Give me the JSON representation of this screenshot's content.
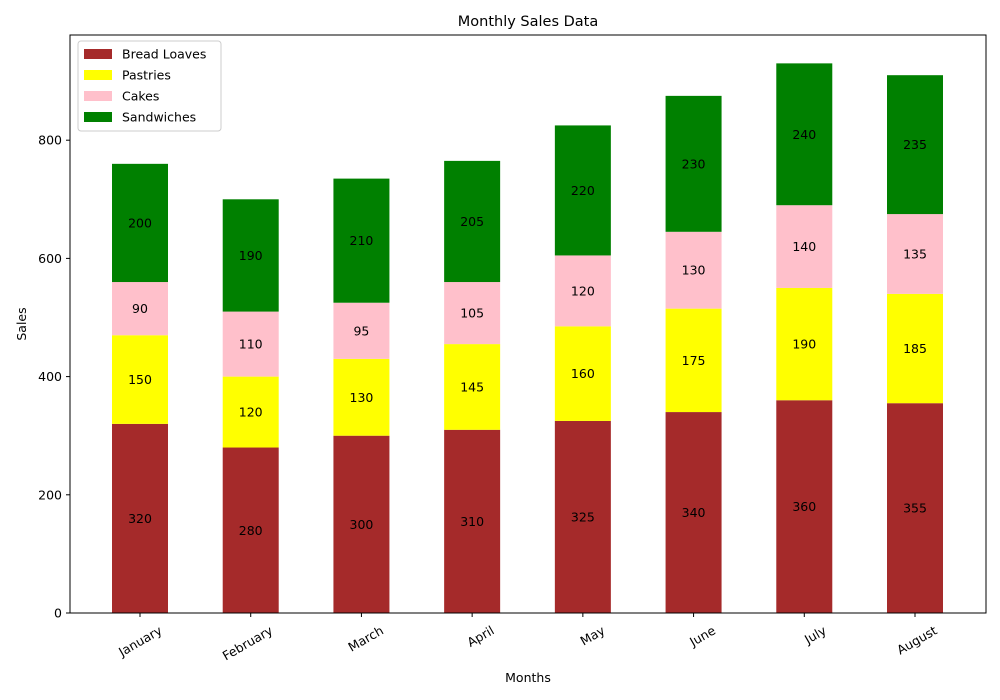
{
  "chart_data": {
    "type": "bar",
    "stacked": true,
    "title": "Monthly Sales Data",
    "xlabel": "Months",
    "ylabel": "Sales",
    "ylim": [
      0,
      978
    ],
    "yticks": [
      0,
      200,
      400,
      600,
      800
    ],
    "grid": false,
    "legend_position": "top-left",
    "categories": [
      "January",
      "February",
      "March",
      "April",
      "May",
      "June",
      "July",
      "August"
    ],
    "series": [
      {
        "name": "Bread Loaves",
        "color": "#a52a2a",
        "values": [
          320,
          280,
          300,
          310,
          325,
          340,
          360,
          355
        ]
      },
      {
        "name": "Pastries",
        "color": "#ffff00",
        "values": [
          150,
          120,
          130,
          145,
          160,
          175,
          190,
          185
        ]
      },
      {
        "name": "Cakes",
        "color": "#ffc0cb",
        "values": [
          90,
          110,
          95,
          105,
          120,
          130,
          140,
          135
        ]
      },
      {
        "name": "Sandwiches",
        "color": "#008000",
        "values": [
          200,
          190,
          210,
          205,
          220,
          230,
          240,
          235
        ]
      }
    ]
  }
}
